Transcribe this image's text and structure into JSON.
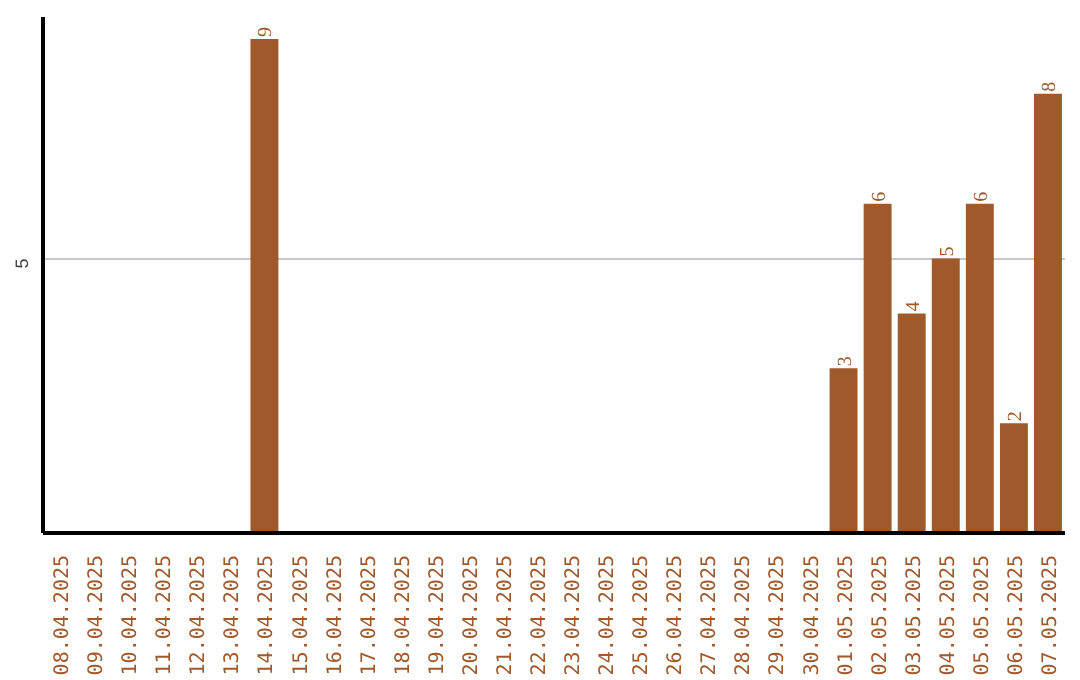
{
  "chart_data": {
    "type": "bar",
    "categories": [
      "08.04.2025",
      "09.04.2025",
      "10.04.2025",
      "11.04.2025",
      "12.04.2025",
      "13.04.2025",
      "14.04.2025",
      "15.04.2025",
      "16.04.2025",
      "17.04.2025",
      "18.04.2025",
      "19.04.2025",
      "20.04.2025",
      "21.04.2025",
      "22.04.2025",
      "23.04.2025",
      "24.04.2025",
      "25.04.2025",
      "26.04.2025",
      "27.04.2025",
      "28.04.2025",
      "29.04.2025",
      "30.04.2025",
      "01.05.2025",
      "02.05.2025",
      "03.05.2025",
      "04.05.2025",
      "05.05.2025",
      "06.05.2025",
      "07.05.2025"
    ],
    "values": [
      null,
      null,
      null,
      null,
      null,
      null,
      9,
      null,
      null,
      null,
      null,
      null,
      null,
      null,
      null,
      null,
      null,
      null,
      null,
      null,
      null,
      null,
      null,
      3,
      6,
      4,
      5,
      6,
      2,
      8
    ],
    "color": "#a0592a",
    "ylim": [
      0,
      9.4
    ],
    "yticks": [
      5
    ],
    "grid": "y",
    "data_labels": true
  }
}
